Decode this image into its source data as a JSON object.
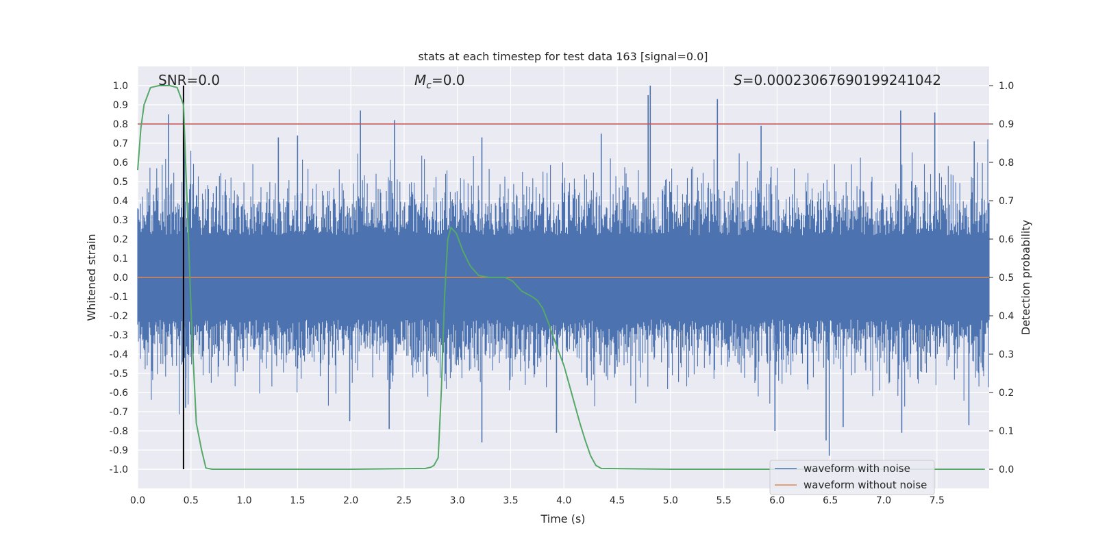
{
  "chart_data": {
    "type": "line",
    "title": "stats at each timestep for test data 163 [signal=0.0]",
    "xlabel": "Time (s)",
    "ylabel": "Whitened strain",
    "y2label": "Detection probability",
    "xlim": [
      0.0,
      7.99
    ],
    "ylim": [
      -1.1,
      1.1
    ],
    "y2lim": [
      -0.05,
      1.05
    ],
    "xticks": [
      "0.0",
      "0.5",
      "1.0",
      "1.5",
      "2.0",
      "2.5",
      "3.0",
      "3.5",
      "4.0",
      "4.5",
      "5.0",
      "5.5",
      "6.0",
      "6.5",
      "7.0",
      "7.5"
    ],
    "yticks": [
      "1.0",
      "0.9",
      "0.8",
      "0.7",
      "0.6",
      "0.5",
      "0.4",
      "0.3",
      "0.2",
      "0.1",
      "0.0",
      "-0.1",
      "-0.2",
      "-0.3",
      "-0.4",
      "-0.5",
      "-0.6",
      "-0.7",
      "-0.8",
      "-0.9",
      "-1.0"
    ],
    "y2ticks": [
      "1.0",
      "0.9",
      "0.8",
      "0.7",
      "0.6",
      "0.5",
      "0.4",
      "0.3",
      "0.2",
      "0.1",
      "0.0"
    ],
    "annotations": {
      "snr": "SNR=0.0",
      "mc_symbol": "M",
      "mc_subscript": "c",
      "mc_value": "=0.0",
      "s_symbol": "S",
      "s_value": "=0.00023067690199241042"
    },
    "threshold": 0.9,
    "vertical_marker_x": 0.43,
    "series": [
      {
        "name": "waveform with noise",
        "color": "#4c72b0",
        "kind": "noise",
        "typical_abs": 0.4,
        "peaks": [
          {
            "t": 0.29,
            "v": 0.85
          },
          {
            "t": 0.44,
            "v": 0.75
          },
          {
            "t": 1.32,
            "v": 0.73
          },
          {
            "t": 1.5,
            "v": 0.74
          },
          {
            "t": 2.09,
            "v": 0.87
          },
          {
            "t": 2.41,
            "v": 0.82
          },
          {
            "t": 3.23,
            "v": 0.73
          },
          {
            "t": 4.35,
            "v": 0.75
          },
          {
            "t": 4.79,
            "v": 0.95
          },
          {
            "t": 4.81,
            "v": 1.0
          },
          {
            "t": 5.44,
            "v": 0.93
          },
          {
            "t": 5.85,
            "v": 0.79
          },
          {
            "t": 7.16,
            "v": 0.87
          },
          {
            "t": 7.48,
            "v": 0.86
          },
          {
            "t": 7.85,
            "v": 0.71
          },
          {
            "t": 6.49,
            "v": -0.93
          },
          {
            "t": 6.46,
            "v": -0.85
          },
          {
            "t": 3.23,
            "v": -0.86
          },
          {
            "t": 2.36,
            "v": -0.79
          },
          {
            "t": 3.93,
            "v": -0.81
          },
          {
            "t": 5.98,
            "v": -0.8
          },
          {
            "t": 7.17,
            "v": -0.81
          },
          {
            "t": 6.62,
            "v": -0.78
          },
          {
            "t": 0.45,
            "v": -0.68
          },
          {
            "t": 7.8,
            "v": -0.77
          },
          {
            "t": 1.99,
            "v": -0.75
          }
        ]
      },
      {
        "name": "waveform without noise",
        "color": "#dd8452",
        "x": [
          0.0,
          7.99
        ],
        "values": [
          0.0,
          0.0
        ]
      },
      {
        "name": "detection probability",
        "color": "#55a868",
        "axis": "right",
        "x": [
          0.0,
          0.03,
          0.06,
          0.12,
          0.2,
          0.3,
          0.37,
          0.43,
          0.47,
          0.51,
          0.55,
          0.6,
          0.64,
          0.7,
          1.0,
          2.0,
          2.7,
          2.75,
          2.78,
          2.82,
          2.85,
          2.88,
          2.91,
          2.94,
          2.99,
          3.05,
          3.12,
          3.2,
          3.3,
          3.45,
          3.52,
          3.6,
          3.7,
          3.75,
          3.8,
          3.85,
          3.92,
          4.0,
          4.05,
          4.1,
          4.15,
          4.2,
          4.25,
          4.3,
          4.35,
          5.0,
          6.0,
          7.0,
          7.95
        ],
        "values": [
          0.78,
          0.89,
          0.95,
          0.995,
          1.0,
          1.0,
          0.995,
          0.95,
          0.65,
          0.35,
          0.12,
          0.05,
          0.003,
          0.0,
          0.0,
          0.0,
          0.002,
          0.005,
          0.01,
          0.03,
          0.21,
          0.45,
          0.6,
          0.63,
          0.615,
          0.57,
          0.53,
          0.505,
          0.5,
          0.5,
          0.49,
          0.465,
          0.45,
          0.44,
          0.42,
          0.385,
          0.33,
          0.27,
          0.22,
          0.17,
          0.12,
          0.075,
          0.035,
          0.01,
          0.002,
          0.0,
          0.0,
          0.0,
          0.0
        ]
      }
    ],
    "legend": {
      "placement": "lower-right",
      "entries": [
        {
          "label": "waveform with noise",
          "color": "#4c72b0"
        },
        {
          "label": "waveform without noise",
          "color": "#dd8452"
        }
      ]
    },
    "grid": true,
    "colors": {
      "background": "#eaeaf2",
      "grid": "#ffffff",
      "threshold": "#c44e52",
      "marker": "#000000"
    }
  }
}
